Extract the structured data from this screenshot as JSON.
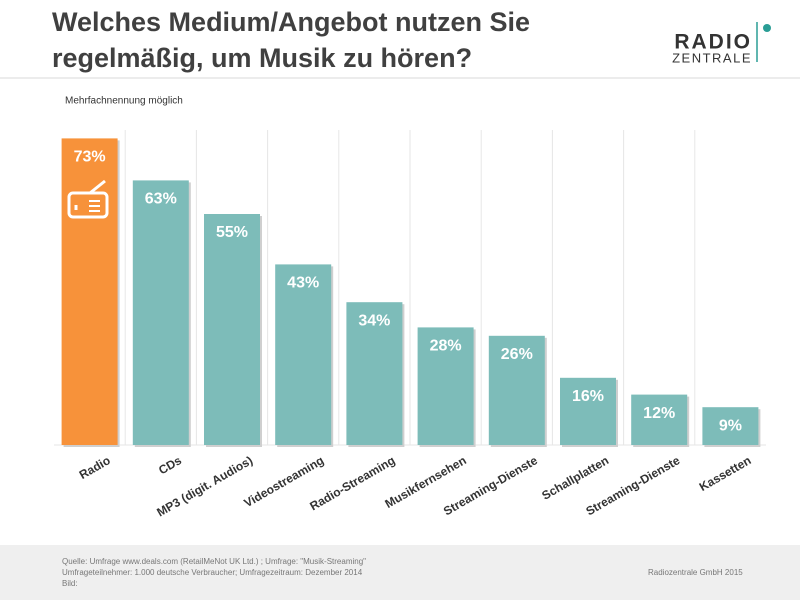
{
  "chart_data": {
    "type": "bar",
    "title": [
      "Welches Medium/Angebot nutzen Sie",
      "regelmäßig, um Musik zu hören?"
    ],
    "subtitle": "Mehrfachnennung  möglich",
    "categories": [
      "Radio",
      "CDs",
      "MP3 (digit. Audios)",
      "Videostreaming",
      "Radio-Streaming",
      "Musikfernsehen",
      "Streaming-Dienste",
      "Schallplatten",
      "Streaming-Dienste",
      "Kassetten"
    ],
    "values": [
      73,
      63,
      55,
      43,
      34,
      28,
      26,
      16,
      12,
      9
    ],
    "value_labels": [
      "73%",
      "63%",
      "55%",
      "43%",
      "34%",
      "28%",
      "26%",
      "16%",
      "12%",
      "9%"
    ],
    "colors": [
      "#f7923a",
      "#7dbcb9",
      "#7dbcb9",
      "#7dbcb9",
      "#7dbcb9",
      "#7dbcb9",
      "#7dbcb9",
      "#7dbcb9",
      "#7dbcb9",
      "#7dbcb9"
    ],
    "ylim": [
      0,
      75
    ]
  },
  "logo": {
    "line1": "RADIO",
    "line2": "ZENTRALE"
  },
  "footer": {
    "source": [
      "Quelle: Umfrage  www.deals.com (RetailMeNot UK Ltd.) ; Umfrage: \"Musik-Streaming\"",
      "Umfrageteilnehmer:  1.000 deutsche Verbraucher; Umfragezeitraum: Dezember 2014",
      "Bild:"
    ],
    "copyright": "Radiozentrale GmbH  2015"
  }
}
